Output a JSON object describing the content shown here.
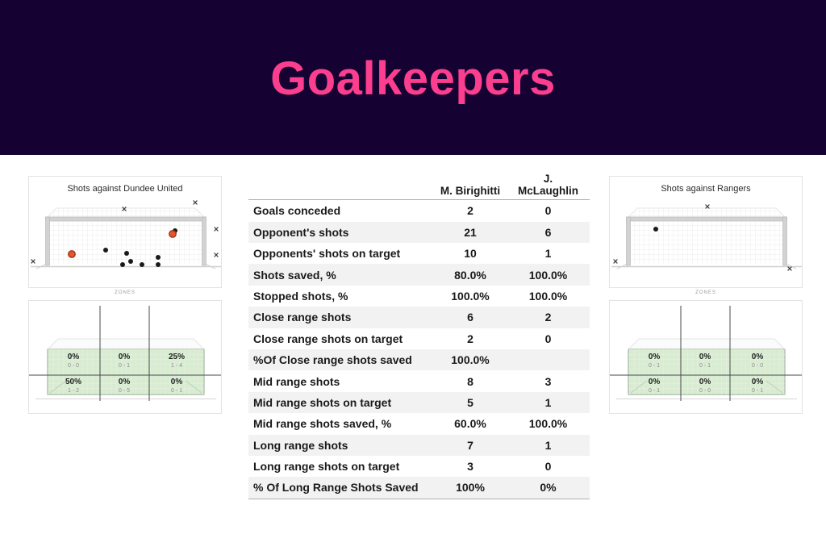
{
  "hero": {
    "title": "Goalkeepers"
  },
  "colors": {
    "header_bg": "#150233",
    "accent_pink": "#fb3e8e",
    "zone_green": "#d7ecd0",
    "goal_red": "#e4572e",
    "dot_black": "#1a1a1a"
  },
  "panels": {
    "shot_left": {
      "title": "Shots against Dundee United",
      "zones_label": "ZONES"
    },
    "shot_right": {
      "title": "Shots against Rangers",
      "zones_label": "ZONES"
    }
  },
  "table": {
    "columns": [
      "M. Birighitti",
      "J.\nMcLaughlin"
    ],
    "rows": [
      {
        "label": "Goals conceded",
        "v1": "2",
        "v2": "0"
      },
      {
        "label": "Opponent's shots",
        "v1": "21",
        "v2": "6"
      },
      {
        "label": "Opponents' shots  on target",
        "v1": "10",
        "v2": "1"
      },
      {
        "label": "Shots saved, %",
        "v1": "80.0%",
        "v2": "100.0%"
      },
      {
        "label": "Stopped shots, %",
        "v1": "100.0%",
        "v2": "100.0%"
      },
      {
        "label": "Close range shots",
        "v1": "6",
        "v2": "2"
      },
      {
        "label": "Close range shots on target",
        "v1": "2",
        "v2": "0"
      },
      {
        "label": "%Of Close range shots saved",
        "v1": "100.0%",
        "v2": ""
      },
      {
        "label": "Mid range shots",
        "v1": "8",
        "v2": "3"
      },
      {
        "label": "Mid range shots on target",
        "v1": "5",
        "v2": "1"
      },
      {
        "label": "Mid range shots saved, %",
        "v1": "60.0%",
        "v2": "100.0%"
      },
      {
        "label": "Long range shots",
        "v1": "7",
        "v2": "1"
      },
      {
        "label": "Long range shots on target",
        "v1": "3",
        "v2": "0"
      },
      {
        "label": "% Of Long Range Shots Saved",
        "v1": "100%",
        "v2": "0%"
      }
    ]
  },
  "chart_data": [
    {
      "type": "scatter",
      "title": "Shots against Dundee United",
      "legend": {
        "dot": "shot on target (saved)",
        "ring": "goal conceded",
        "x": "shot off target"
      },
      "units": "goal-mouth view, panel-relative px (240x115)",
      "shots_on_target": [
        [
          181,
          43
        ],
        [
          95,
          67
        ],
        [
          121,
          71
        ],
        [
          116,
          85
        ],
        [
          126,
          81
        ],
        [
          140,
          85
        ],
        [
          160,
          76
        ],
        [
          160,
          85
        ]
      ],
      "goals": [
        [
          53,
          72
        ],
        [
          178,
          47
        ]
      ],
      "off_target": [
        [
          118,
          16
        ],
        [
          206,
          8
        ],
        [
          232,
          41
        ],
        [
          232,
          73
        ],
        [
          5,
          81
        ]
      ]
    },
    {
      "type": "heatmap",
      "title": "Save zones vs Dundee United",
      "grid": [
        2,
        3
      ],
      "cells": [
        {
          "pct": "0%",
          "ratio": "0 - 0"
        },
        {
          "pct": "0%",
          "ratio": "0 - 1"
        },
        {
          "pct": "25%",
          "ratio": "1 - 4"
        },
        {
          "pct": "50%",
          "ratio": "1 - 2"
        },
        {
          "pct": "0%",
          "ratio": "0 - 5"
        },
        {
          "pct": "0%",
          "ratio": "0 - 1"
        }
      ]
    },
    {
      "type": "scatter",
      "title": "Shots against Rangers",
      "legend": {
        "dot": "shot on target (saved)",
        "ring": "goal conceded",
        "x": "shot off target"
      },
      "units": "goal-mouth view, panel-relative px (240x115)",
      "shots_on_target": [
        [
          57,
          41
        ]
      ],
      "goals": [],
      "off_target": [
        [
          121,
          13
        ],
        [
          7,
          81
        ],
        [
          223,
          90
        ]
      ]
    },
    {
      "type": "heatmap",
      "title": "Save zones vs Rangers",
      "grid": [
        2,
        3
      ],
      "cells": [
        {
          "pct": "0%",
          "ratio": "0 - 1"
        },
        {
          "pct": "0%",
          "ratio": "0 - 1"
        },
        {
          "pct": "0%",
          "ratio": "0 - 0"
        },
        {
          "pct": "0%",
          "ratio": "0 - 1"
        },
        {
          "pct": "0%",
          "ratio": "0 - 0"
        },
        {
          "pct": "0%",
          "ratio": "0 - 1"
        }
      ]
    }
  ]
}
